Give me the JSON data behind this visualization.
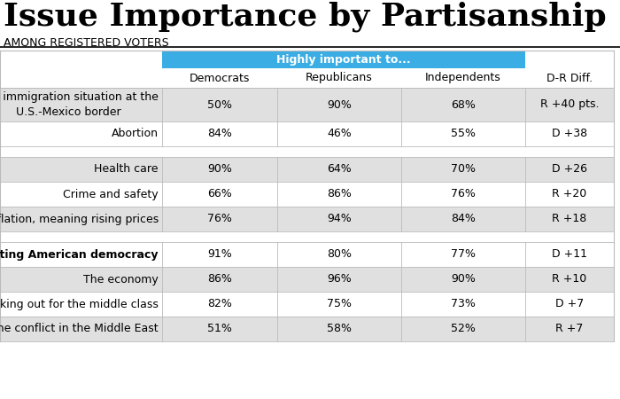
{
  "title": "Issue Importance by Partisanship",
  "subtitle": "AMONG REGISTERED VOTERS",
  "header_bg": "#3AADE4",
  "header_text": "Highly important to...",
  "col_headers": [
    "Democrats",
    "Republicans",
    "Independents",
    "D-R Diff."
  ],
  "rows": [
    {
      "issue": "The immigration situation at the\nU.S.-Mexico border",
      "dems": "50%",
      "reps": "90%",
      "inds": "68%",
      "diff": "R +40 pts.",
      "bold": false,
      "separator_after": false,
      "shade": "light",
      "tall": true
    },
    {
      "issue": "Abortion",
      "dems": "84%",
      "reps": "46%",
      "inds": "55%",
      "diff": "D +38",
      "bold": false,
      "separator_after": true,
      "shade": "white",
      "tall": false
    },
    {
      "issue": "Health care",
      "dems": "90%",
      "reps": "64%",
      "inds": "70%",
      "diff": "D +26",
      "bold": false,
      "separator_after": false,
      "shade": "light",
      "tall": false
    },
    {
      "issue": "Crime and safety",
      "dems": "66%",
      "reps": "86%",
      "inds": "76%",
      "diff": "R +20",
      "bold": false,
      "separator_after": false,
      "shade": "white",
      "tall": false
    },
    {
      "issue": "Inflation, meaning rising prices",
      "dems": "76%",
      "reps": "94%",
      "inds": "84%",
      "diff": "R +18",
      "bold": false,
      "separator_after": true,
      "shade": "light",
      "tall": false
    },
    {
      "issue": "Protecting American democracy",
      "dems": "91%",
      "reps": "80%",
      "inds": "77%",
      "diff": "D +11",
      "bold": true,
      "separator_after": false,
      "shade": "white",
      "tall": false
    },
    {
      "issue": "The economy",
      "dems": "86%",
      "reps": "96%",
      "inds": "90%",
      "diff": "R +10",
      "bold": false,
      "separator_after": false,
      "shade": "light",
      "tall": false
    },
    {
      "issue": "Looking out for the middle class",
      "dems": "82%",
      "reps": "75%",
      "inds": "73%",
      "diff": "D +7",
      "bold": false,
      "separator_after": false,
      "shade": "white",
      "tall": false
    },
    {
      "issue": "The conflict in the Middle East",
      "dems": "51%",
      "reps": "58%",
      "inds": "52%",
      "diff": "R +7",
      "bold": false,
      "separator_after": false,
      "shade": "light",
      "tall": false
    }
  ],
  "color_light": "#E0E0E0",
  "color_white": "#FFFFFF",
  "title_fontsize": 26,
  "subtitle_fontsize": 9,
  "table_fontsize": 9,
  "header_fontsize": 9
}
